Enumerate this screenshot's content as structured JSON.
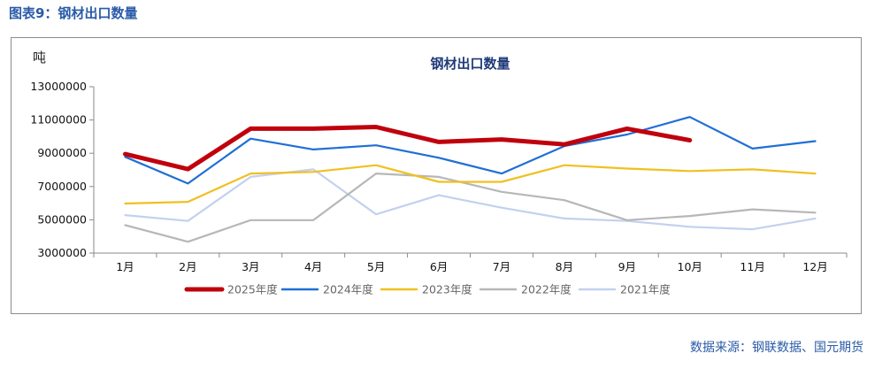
{
  "figure_title": "图表9：钢材出口数量",
  "source_note": "数据来源：钢联数据、国元期货",
  "chart_data": {
    "type": "line",
    "title": "钢材出口数量",
    "ylabel": "吨",
    "xlabel": "",
    "ylim": [
      3000000,
      13000000
    ],
    "yticks": [
      3000000,
      5000000,
      7000000,
      9000000,
      11000000,
      13000000
    ],
    "ytick_labels": [
      "3000000",
      "5000000",
      "7000000",
      "9000000",
      "11000000",
      "13000000"
    ],
    "categories": [
      "1月",
      "2月",
      "3月",
      "4月",
      "5月",
      "6月",
      "7月",
      "8月",
      "9月",
      "10月",
      "11月",
      "12月"
    ],
    "grid": false,
    "legend_position": "bottom",
    "series": [
      {
        "name": "2025年度",
        "color": "#c0000c",
        "width": 5,
        "values": [
          8950000,
          8050000,
          10480000,
          10480000,
          10580000,
          9680000,
          9830000,
          9530000,
          10480000,
          9780000,
          null,
          null
        ]
      },
      {
        "name": "2024年度",
        "color": "#1f6fd6",
        "width": 2.2,
        "values": [
          8780000,
          7180000,
          9880000,
          9230000,
          9480000,
          8730000,
          7780000,
          9430000,
          10130000,
          11180000,
          9280000,
          9730000
        ]
      },
      {
        "name": "2023年度",
        "color": "#f0c020",
        "width": 2.2,
        "values": [
          5980000,
          6080000,
          7780000,
          7880000,
          8280000,
          7280000,
          7280000,
          8280000,
          8080000,
          7930000,
          8030000,
          7780000
        ]
      },
      {
        "name": "2022年度",
        "color": "#b7b7b7",
        "width": 2.2,
        "values": [
          4680000,
          3680000,
          4980000,
          4980000,
          7780000,
          7580000,
          6680000,
          6180000,
          4980000,
          5230000,
          5630000,
          5430000
        ]
      },
      {
        "name": "2021年度",
        "color": "#c3d1ef",
        "width": 2.2,
        "values": [
          5280000,
          4930000,
          7580000,
          8030000,
          5330000,
          6480000,
          5730000,
          5080000,
          4930000,
          4580000,
          4430000,
          5080000
        ]
      }
    ]
  }
}
